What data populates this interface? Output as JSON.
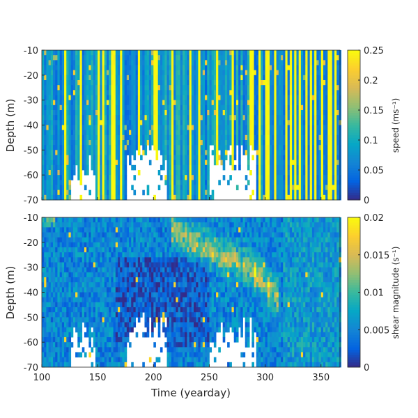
{
  "chart_data": [
    {
      "type": "heatmap",
      "panel": "top",
      "xlabel": "",
      "ylabel": "Depth (m)",
      "xlim": [
        100,
        367
      ],
      "ylim": [
        -70,
        -10
      ],
      "yticks": [
        "-10",
        "-20",
        "-30",
        "-40",
        "-50",
        "-60",
        "-70"
      ],
      "colorbar": {
        "label": "speed (ms⁻¹)",
        "clim": [
          0,
          0.25
        ],
        "ticks": [
          "0",
          "0.05",
          "0.1",
          "0.15",
          "0.2",
          "0.25"
        ]
      },
      "base_value": 0.06,
      "high_speed_days": [
        120,
        134,
        150,
        154,
        163,
        170,
        186,
        200,
        202,
        216,
        232,
        240,
        256,
        270,
        286,
        288,
        294,
        300,
        302,
        308,
        318,
        322,
        326,
        330,
        336,
        340,
        344,
        350,
        356,
        358,
        362
      ],
      "no_data_bottom": [
        {
          "days": [
            126,
            146
          ],
          "above_depth": -58
        },
        {
          "days": [
            176,
            210
          ],
          "above_depth": -55
        },
        {
          "days": [
            250,
            290
          ],
          "above_depth": -55
        }
      ]
    },
    {
      "type": "heatmap",
      "panel": "bottom",
      "xlabel": "Time (yearday)",
      "ylabel": "Depth (m)",
      "xlim": [
        100,
        367
      ],
      "ylim": [
        -70,
        -10
      ],
      "xticks": [
        "100",
        "150",
        "200",
        "250",
        "300",
        "350"
      ],
      "yticks": [
        "-10",
        "-20",
        "-30",
        "-40",
        "-50",
        "-60",
        "-70"
      ],
      "colorbar": {
        "label": "shear magnitude (s⁻¹)",
        "clim": [
          0,
          0.02
        ],
        "ticks": [
          "0",
          "0.005",
          "0.01",
          "0.015",
          "0.02"
        ]
      },
      "base_value": 0.005,
      "high_shear_track": [
        [
          215,
          -15
        ],
        [
          235,
          -20
        ],
        [
          255,
          -24
        ],
        [
          275,
          -28
        ],
        [
          290,
          -32
        ],
        [
          302,
          -38
        ],
        [
          310,
          -42
        ]
      ],
      "high_shear_value": 0.014,
      "no_data_bottom": [
        {
          "days": [
            126,
            146
          ],
          "above_depth": -58
        },
        {
          "days": [
            176,
            210
          ],
          "above_depth": -55
        },
        {
          "days": [
            250,
            290
          ],
          "above_depth": -58
        }
      ]
    }
  ]
}
